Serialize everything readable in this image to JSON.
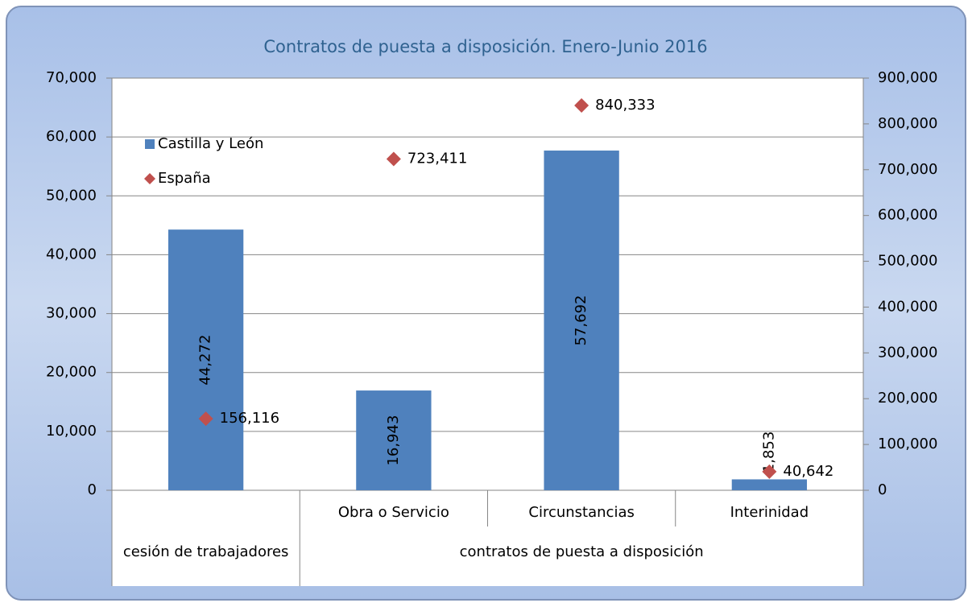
{
  "chart_data": {
    "type": "bar",
    "title": "Contratos de puesta a disposición. Enero-Junio 2016",
    "categories": [
      null,
      "Obra o Servicio",
      "Circunstancias",
      "Interinidad"
    ],
    "category_groups": [
      {
        "label": "cesión de trabajadores",
        "span": 1
      },
      {
        "label": "contratos de puesta a disposición",
        "span": 3
      }
    ],
    "series": [
      {
        "name": "Castilla y León",
        "type": "bar",
        "color": "#4f81bd",
        "values": [
          44272,
          16943,
          57692,
          1853
        ],
        "value_labels": [
          "44,272",
          "16,943",
          "57,692",
          "1,853"
        ]
      },
      {
        "name": "España",
        "type": "scatter",
        "axis": "y2",
        "color": "#c0504d",
        "values": [
          156116,
          723411,
          840333,
          40642
        ],
        "value_labels": [
          "156,116",
          "723,411",
          "840,333",
          "40,642"
        ]
      }
    ],
    "ylim": [
      0,
      70000
    ],
    "yticks": [
      0,
      {
        "value": 10000,
        "label": "10,000"
      },
      {
        "value": 20000,
        "label": "20,000"
      },
      {
        "value": 30000,
        "label": "30,000"
      },
      {
        "value": 40000,
        "label": "40,000"
      },
      {
        "value": 50000,
        "label": "50,000"
      },
      {
        "value": 60000,
        "label": "60,000"
      },
      {
        "value": 70000,
        "label": "70,000"
      }
    ],
    "y2lim": [
      0,
      900000
    ],
    "y2ticks": [
      0,
      {
        "value": 100000,
        "label": "100,000"
      },
      {
        "value": 200000,
        "label": "200,000"
      },
      {
        "value": 300000,
        "label": "300,000"
      },
      {
        "value": 400000,
        "label": "400,000"
      },
      {
        "value": 500000,
        "label": "500,000"
      },
      {
        "value": 600000,
        "label": "600,000"
      },
      {
        "value": 700000,
        "label": "700,000"
      },
      {
        "value": 800000,
        "label": "800,000"
      },
      {
        "value": 900000,
        "label": "900,000"
      }
    ],
    "grid": true,
    "legend": "upper left"
  }
}
